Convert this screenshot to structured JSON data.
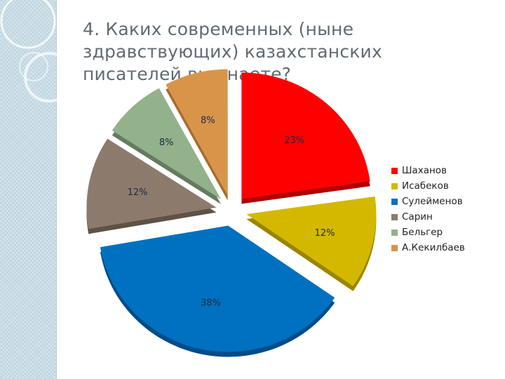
{
  "title": "4. Каких современных (ныне здравствующих) казахстанских писателей вы знаете?",
  "chart_data": {
    "type": "pie",
    "title": "",
    "categories": [
      "Шаханов",
      "Исабеков",
      "Сулейменов",
      "Сарин",
      "Бельгер",
      "А.Кекилбаев"
    ],
    "values": [
      23,
      12,
      38,
      12,
      8,
      8
    ],
    "labels": [
      "23%",
      "12%",
      "38%",
      "12%",
      "8%",
      "8%"
    ],
    "colors": [
      "#ff0000",
      "#d4b800",
      "#0070c0",
      "#8c7b6d",
      "#93b18a",
      "#d8954a"
    ],
    "side_colors": [
      "#b00000",
      "#9a8500",
      "#004c88",
      "#5e5246",
      "#647c5d",
      "#a86a2c"
    ],
    "exploded": true,
    "legend_position": "right"
  },
  "legend": [
    {
      "label": "Шаханов",
      "color": "#ff0000"
    },
    {
      "label": "Исабеков",
      "color": "#d4b800"
    },
    {
      "label": "Сулейменов",
      "color": "#0070c0"
    },
    {
      "label": "Сарин",
      "color": "#8c7b6d"
    },
    {
      "label": "Бельгер",
      "color": "#93b18a"
    },
    {
      "label": "А.Кекилбаев",
      "color": "#d8954a"
    }
  ]
}
